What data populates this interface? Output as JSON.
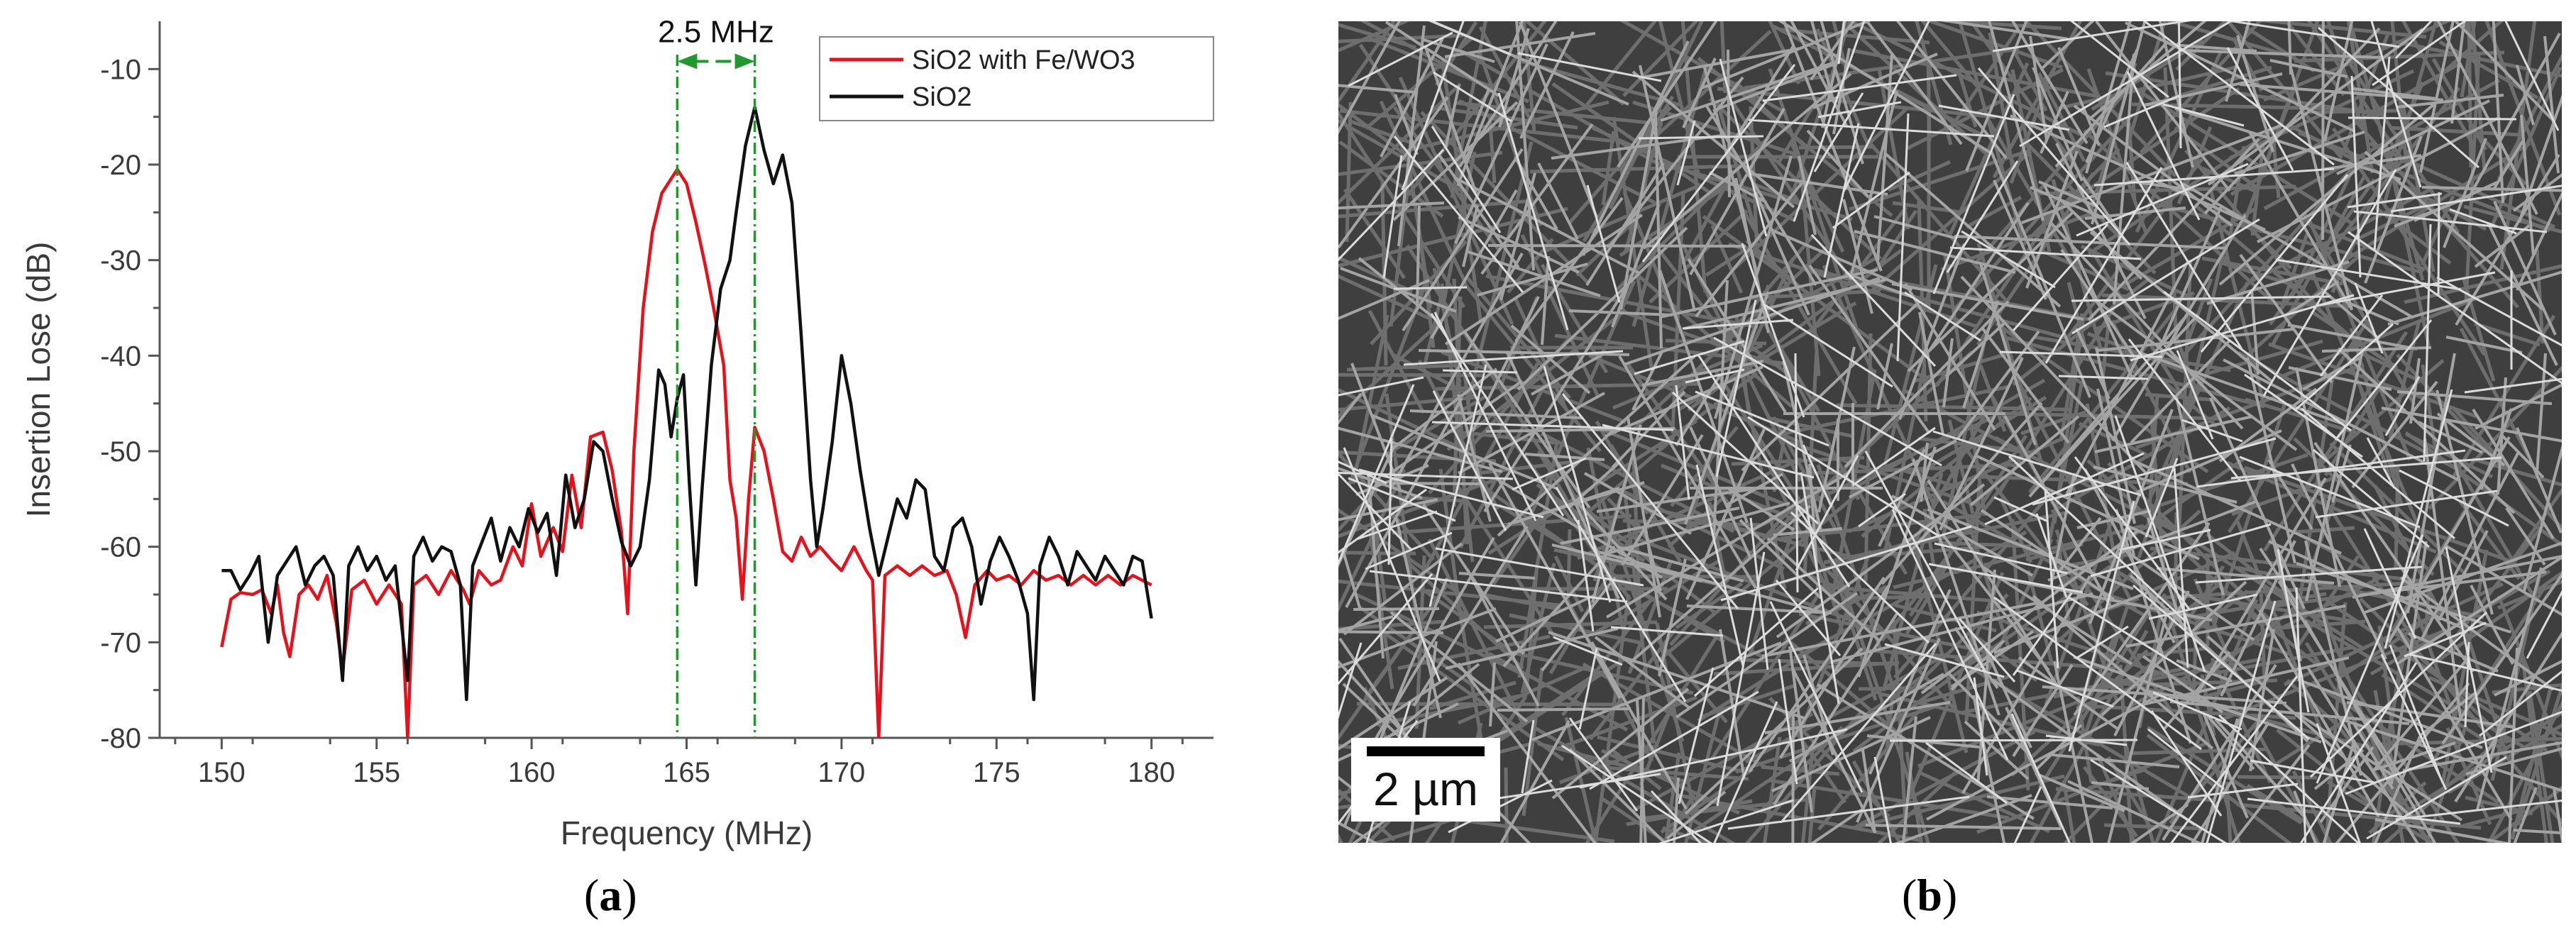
{
  "chart_data": {
    "type": "line",
    "xlabel": "Frequency (MHz)",
    "ylabel": "Insertion Lose (dB)",
    "xlim": [
      148,
      182
    ],
    "ylim": [
      -80,
      -5
    ],
    "xticks": [
      150,
      155,
      160,
      165,
      170,
      175,
      180
    ],
    "yticks": [
      -80,
      -70,
      -60,
      -50,
      -40,
      -30,
      -20,
      -10
    ],
    "legend_position": "top-right",
    "annotations": [
      {
        "text": "2.5 MHz",
        "between_x": [
          164.7,
          167.2
        ]
      }
    ],
    "series": [
      {
        "name": "SiO2 with Fe/WO3",
        "color": "#e8101a",
        "points": [
          [
            150.0,
            -70.5
          ],
          [
            150.3,
            -65.5
          ],
          [
            150.6,
            -64.8
          ],
          [
            151.0,
            -65.0
          ],
          [
            151.3,
            -64.5
          ],
          [
            151.6,
            -67.0
          ],
          [
            151.8,
            -64.0
          ],
          [
            152.0,
            -69.0
          ],
          [
            152.2,
            -71.5
          ],
          [
            152.5,
            -65.0
          ],
          [
            152.8,
            -64.0
          ],
          [
            153.1,
            -65.5
          ],
          [
            153.4,
            -63.0
          ],
          [
            153.7,
            -68.0
          ],
          [
            153.9,
            -73.0
          ],
          [
            154.2,
            -64.5
          ],
          [
            154.6,
            -63.5
          ],
          [
            155.0,
            -66.0
          ],
          [
            155.4,
            -64.0
          ],
          [
            155.8,
            -66.0
          ],
          [
            156.0,
            -80.0
          ],
          [
            156.2,
            -64.0
          ],
          [
            156.6,
            -63.0
          ],
          [
            157.0,
            -65.0
          ],
          [
            157.4,
            -62.5
          ],
          [
            157.8,
            -64.5
          ],
          [
            158.0,
            -66.0
          ],
          [
            158.3,
            -62.5
          ],
          [
            158.7,
            -64.0
          ],
          [
            159.0,
            -63.5
          ],
          [
            159.4,
            -60.0
          ],
          [
            159.7,
            -62.0
          ],
          [
            160.0,
            -55.5
          ],
          [
            160.3,
            -61.0
          ],
          [
            160.7,
            -58.0
          ],
          [
            161.0,
            -60.5
          ],
          [
            161.3,
            -52.5
          ],
          [
            161.6,
            -58.0
          ],
          [
            161.9,
            -48.5
          ],
          [
            162.3,
            -48.0
          ],
          [
            162.6,
            -52.0
          ],
          [
            162.9,
            -58.5
          ],
          [
            163.1,
            -67.0
          ],
          [
            163.3,
            -50.0
          ],
          [
            163.6,
            -35.0
          ],
          [
            163.9,
            -27.0
          ],
          [
            164.2,
            -23.0
          ],
          [
            164.7,
            -20.5
          ],
          [
            165.0,
            -22.0
          ],
          [
            165.3,
            -26.0
          ],
          [
            165.6,
            -30.5
          ],
          [
            165.9,
            -35.5
          ],
          [
            166.2,
            -41.0
          ],
          [
            166.4,
            -53.0
          ],
          [
            166.6,
            -57.0
          ],
          [
            166.8,
            -65.5
          ],
          [
            167.0,
            -55.0
          ],
          [
            167.2,
            -47.5
          ],
          [
            167.5,
            -50.0
          ],
          [
            167.8,
            -55.0
          ],
          [
            168.1,
            -60.5
          ],
          [
            168.4,
            -61.5
          ],
          [
            168.7,
            -59.0
          ],
          [
            169.0,
            -61.0
          ],
          [
            169.3,
            -60.0
          ],
          [
            169.7,
            -61.5
          ],
          [
            170.0,
            -62.5
          ],
          [
            170.4,
            -60.0
          ],
          [
            170.8,
            -62.5
          ],
          [
            171.0,
            -63.5
          ],
          [
            171.2,
            -80.0
          ],
          [
            171.4,
            -63.0
          ],
          [
            171.8,
            -62.0
          ],
          [
            172.2,
            -63.0
          ],
          [
            172.6,
            -62.0
          ],
          [
            173.0,
            -63.0
          ],
          [
            173.4,
            -62.5
          ],
          [
            173.7,
            -65.0
          ],
          [
            174.0,
            -69.5
          ],
          [
            174.3,
            -64.0
          ],
          [
            174.7,
            -62.5
          ],
          [
            175.0,
            -63.5
          ],
          [
            175.4,
            -63.0
          ],
          [
            175.8,
            -64.0
          ],
          [
            176.2,
            -62.5
          ],
          [
            176.6,
            -63.5
          ],
          [
            177.0,
            -63.0
          ],
          [
            177.4,
            -64.0
          ],
          [
            177.8,
            -63.0
          ],
          [
            178.2,
            -64.0
          ],
          [
            178.6,
            -63.0
          ],
          [
            179.0,
            -64.0
          ],
          [
            179.4,
            -63.0
          ],
          [
            180.0,
            -64.0
          ]
        ]
      },
      {
        "name": "SiO2",
        "color": "#111111",
        "points": [
          [
            150.0,
            -62.5
          ],
          [
            150.3,
            -62.5
          ],
          [
            150.6,
            -64.5
          ],
          [
            150.9,
            -63.0
          ],
          [
            151.2,
            -61.0
          ],
          [
            151.5,
            -70.0
          ],
          [
            151.8,
            -63.0
          ],
          [
            152.1,
            -61.5
          ],
          [
            152.4,
            -60.0
          ],
          [
            152.7,
            -64.0
          ],
          [
            153.0,
            -62.0
          ],
          [
            153.3,
            -61.0
          ],
          [
            153.6,
            -63.0
          ],
          [
            153.9,
            -74.0
          ],
          [
            154.1,
            -62.0
          ],
          [
            154.4,
            -60.0
          ],
          [
            154.7,
            -62.5
          ],
          [
            155.0,
            -61.0
          ],
          [
            155.3,
            -63.5
          ],
          [
            155.6,
            -62.0
          ],
          [
            156.0,
            -74.0
          ],
          [
            156.2,
            -61.0
          ],
          [
            156.5,
            -59.0
          ],
          [
            156.8,
            -61.5
          ],
          [
            157.1,
            -60.0
          ],
          [
            157.4,
            -60.5
          ],
          [
            157.7,
            -64.0
          ],
          [
            157.9,
            -76.0
          ],
          [
            158.1,
            -62.0
          ],
          [
            158.4,
            -59.5
          ],
          [
            158.7,
            -57.0
          ],
          [
            159.0,
            -61.5
          ],
          [
            159.3,
            -58.0
          ],
          [
            159.6,
            -60.0
          ],
          [
            159.9,
            -56.0
          ],
          [
            160.2,
            -58.5
          ],
          [
            160.5,
            -56.5
          ],
          [
            160.8,
            -63.0
          ],
          [
            161.1,
            -52.5
          ],
          [
            161.4,
            -58.0
          ],
          [
            161.7,
            -55.0
          ],
          [
            162.0,
            -49.0
          ],
          [
            162.3,
            -50.0
          ],
          [
            162.6,
            -55.0
          ],
          [
            162.9,
            -59.5
          ],
          [
            163.2,
            -62.0
          ],
          [
            163.5,
            -60.0
          ],
          [
            163.8,
            -53.0
          ],
          [
            164.1,
            -41.5
          ],
          [
            164.3,
            -43.0
          ],
          [
            164.5,
            -48.5
          ],
          [
            164.7,
            -44.5
          ],
          [
            164.9,
            -42.0
          ],
          [
            165.1,
            -54.0
          ],
          [
            165.3,
            -64.0
          ],
          [
            165.5,
            -54.0
          ],
          [
            165.8,
            -41.0
          ],
          [
            166.1,
            -33.0
          ],
          [
            166.4,
            -30.0
          ],
          [
            166.6,
            -25.0
          ],
          [
            166.9,
            -18.0
          ],
          [
            167.2,
            -14.0
          ],
          [
            167.5,
            -18.5
          ],
          [
            167.8,
            -22.0
          ],
          [
            168.1,
            -19.0
          ],
          [
            168.4,
            -24.0
          ],
          [
            168.7,
            -38.0
          ],
          [
            169.0,
            -53.0
          ],
          [
            169.2,
            -60.0
          ],
          [
            169.4,
            -56.0
          ],
          [
            169.7,
            -49.0
          ],
          [
            170.0,
            -40.0
          ],
          [
            170.3,
            -45.0
          ],
          [
            170.6,
            -52.0
          ],
          [
            170.9,
            -58.0
          ],
          [
            171.2,
            -63.0
          ],
          [
            171.5,
            -59.0
          ],
          [
            171.8,
            -55.0
          ],
          [
            172.1,
            -57.0
          ],
          [
            172.4,
            -53.0
          ],
          [
            172.7,
            -54.0
          ],
          [
            173.0,
            -61.0
          ],
          [
            173.3,
            -62.5
          ],
          [
            173.6,
            -58.0
          ],
          [
            173.9,
            -57.0
          ],
          [
            174.2,
            -60.0
          ],
          [
            174.5,
            -66.0
          ],
          [
            174.8,
            -61.5
          ],
          [
            175.1,
            -59.0
          ],
          [
            175.4,
            -61.0
          ],
          [
            175.7,
            -63.5
          ],
          [
            176.0,
            -67.0
          ],
          [
            176.2,
            -76.0
          ],
          [
            176.4,
            -62.0
          ],
          [
            176.7,
            -59.0
          ],
          [
            177.0,
            -61.0
          ],
          [
            177.3,
            -64.0
          ],
          [
            177.6,
            -60.5
          ],
          [
            177.9,
            -62.0
          ],
          [
            178.2,
            -63.5
          ],
          [
            178.5,
            -61.0
          ],
          [
            178.8,
            -62.5
          ],
          [
            179.1,
            -64.0
          ],
          [
            179.4,
            -61.0
          ],
          [
            179.7,
            -61.5
          ],
          [
            180.0,
            -67.5
          ]
        ]
      }
    ]
  },
  "panel_a": {
    "caption": "(a)",
    "caption_letter": "a"
  },
  "panel_b": {
    "caption": "(b)",
    "caption_letter": "b",
    "scale_bar_label": "2 µm"
  },
  "colors": {
    "annotation_green": "#1f9a2a",
    "sem_background": "#3f3f3f"
  }
}
